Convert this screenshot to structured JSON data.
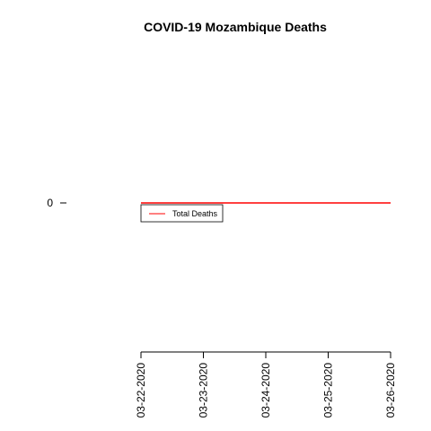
{
  "chart_data": {
    "type": "line",
    "title": "COVID-19 Mozambique Deaths",
    "xlabel": "",
    "ylabel": "",
    "x": [
      "03-22-2020",
      "03-23-2020",
      "03-24-2020",
      "03-25-2020",
      "03-26-2020"
    ],
    "series": [
      {
        "name": "Total Deaths",
        "color": "#ff0000",
        "values": [
          0,
          0,
          0,
          0,
          0
        ]
      }
    ],
    "y_ticks": [
      0
    ],
    "ylim": [
      -1,
      1
    ],
    "grid": false,
    "legend": "top-left"
  }
}
